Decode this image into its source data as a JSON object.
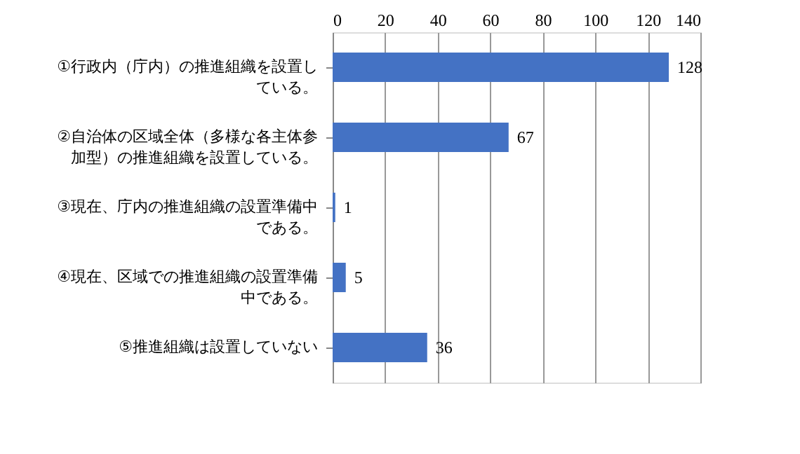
{
  "chart_data": {
    "type": "bar",
    "orientation": "horizontal",
    "categories": [
      "①行政内（庁内）の推進組織を設置している。",
      "②自治体の区域全体（多様な各主体参加型）の推進組織を設置している。",
      "③現在、庁内の推進組織の設置準備中である。",
      "④現在、区域での推進組織の設置準備中である。",
      "⑤推進組織は設置していない"
    ],
    "values": [
      128,
      67,
      1,
      5,
      36
    ],
    "color": "#4472c4",
    "xlim": [
      0,
      140
    ],
    "xticks": [
      0,
      20,
      40,
      60,
      80,
      100,
      120,
      140
    ],
    "grid": "x",
    "data_labels": true
  }
}
